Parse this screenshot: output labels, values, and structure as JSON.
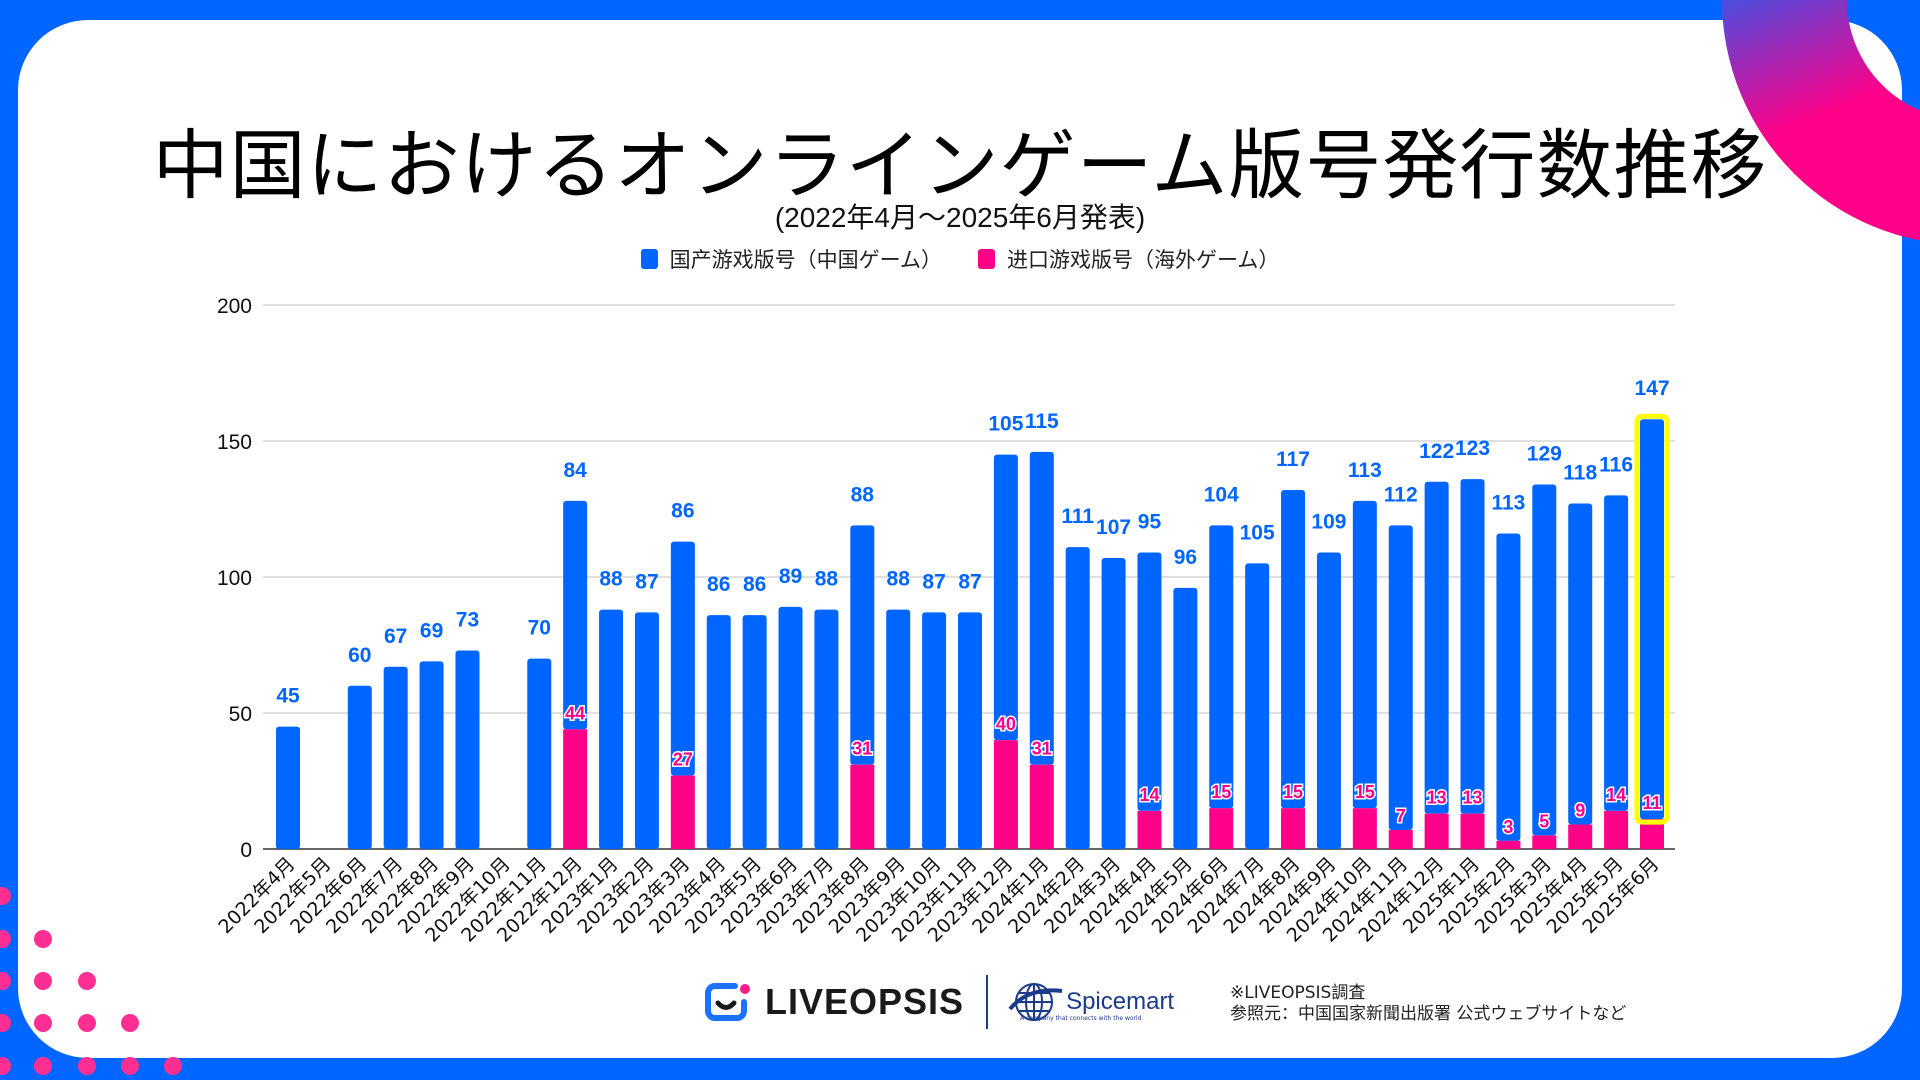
{
  "page": {
    "title": "中国におけるオンラインゲーム版号発行数推移",
    "subtitle": "(2022年4月～2025年6月発表)",
    "colors": {
      "frame": "#0066ff",
      "domestic": "#0066ff",
      "import": "#ff0088",
      "highlight": "#ffff00",
      "accent_gradient_start": "#5a3fd6",
      "accent_gradient_end": "#ff0088"
    }
  },
  "legend": [
    {
      "label": "国产游戏版号（中国ゲーム）",
      "color": "#0066ff"
    },
    {
      "label": "进口游戏版号（海外ゲーム）",
      "color": "#ff0088"
    }
  ],
  "footer": {
    "logo_primary": "LIVEOPSIS",
    "logo_secondary": "Spicemart",
    "logo_secondary_tagline": "A company that connects with the world",
    "note_line1": "※LIVEOPSIS調査",
    "note_line2": "参照元：中国国家新聞出版署 公式ウェブサイトなど"
  },
  "chart_data": {
    "type": "bar",
    "stacked": true,
    "title": "中国におけるオンラインゲーム版号発行数推移",
    "subtitle": "(2022年4月～2025年6月発表)",
    "xlabel": "",
    "ylabel": "",
    "ylim": [
      0,
      200
    ],
    "yticks": [
      0,
      50,
      100,
      150,
      200
    ],
    "grid": true,
    "legend_position": "top",
    "highlight_category": "2025年6月",
    "categories": [
      "2022年4月",
      "2022年5月",
      "2022年6月",
      "2022年7月",
      "2022年8月",
      "2022年9月",
      "2022年10月",
      "2022年11月",
      "2022年12月",
      "2023年1月",
      "2023年2月",
      "2023年3月",
      "2023年4月",
      "2023年5月",
      "2023年6月",
      "2023年7月",
      "2023年8月",
      "2023年9月",
      "2023年10月",
      "2023年11月",
      "2023年12月",
      "2024年1月",
      "2024年2月",
      "2024年3月",
      "2024年4月",
      "2024年5月",
      "2024年6月",
      "2024年7月",
      "2024年8月",
      "2024年9月",
      "2024年10月",
      "2024年11月",
      "2024年12月",
      "2025年1月",
      "2025年2月",
      "2025年3月",
      "2025年4月",
      "2025年5月",
      "2025年6月"
    ],
    "series": [
      {
        "name": "进口游戏版号（海外ゲーム）",
        "color": "#ff0088",
        "values": [
          0,
          0,
          0,
          0,
          0,
          0,
          0,
          0,
          44,
          0,
          0,
          27,
          0,
          0,
          0,
          0,
          31,
          0,
          0,
          0,
          40,
          31,
          0,
          0,
          14,
          0,
          15,
          0,
          15,
          0,
          15,
          7,
          13,
          13,
          3,
          5,
          9,
          14,
          11
        ]
      },
      {
        "name": "国产游戏版号（中国ゲーム）",
        "color": "#0066ff",
        "values": [
          45,
          0,
          60,
          67,
          69,
          73,
          0,
          70,
          84,
          88,
          87,
          86,
          86,
          86,
          89,
          88,
          88,
          88,
          87,
          87,
          105,
          115,
          111,
          107,
          95,
          96,
          104,
          105,
          117,
          109,
          113,
          112,
          122,
          123,
          113,
          129,
          118,
          116,
          147
        ]
      }
    ]
  }
}
